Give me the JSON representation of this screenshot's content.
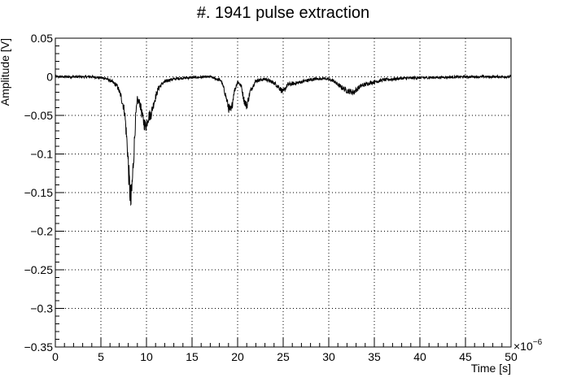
{
  "chart_data": {
    "type": "line",
    "title": "#. 1941 pulse extraction",
    "xlabel": "Time [s]",
    "ylabel": "Amplitude [V]",
    "x_multiplier_label": "×10",
    "x_multiplier_exponent": "−6",
    "xlim": [
      0,
      50
    ],
    "ylim": [
      -0.35,
      0.05
    ],
    "grid": true,
    "x_ticks": [
      0,
      5,
      10,
      15,
      20,
      25,
      30,
      35,
      40,
      45,
      50
    ],
    "x_tick_labels": [
      "0",
      "5",
      "10",
      "15",
      "20",
      "25",
      "30",
      "35",
      "40",
      "45",
      "50"
    ],
    "y_ticks": [
      0.05,
      0,
      -0.05,
      -0.1,
      -0.15,
      -0.2,
      -0.25,
      -0.3,
      -0.35
    ],
    "y_tick_labels": [
      "0.05",
      "0",
      "−0.05",
      "−0.1",
      "−0.15",
      "−0.2",
      "−0.25",
      "−0.3",
      "−0.35"
    ],
    "series": [
      {
        "color": "#000000",
        "x": [
          0,
          4,
          5.5,
          6.2,
          6.8,
          7.2,
          7.6,
          7.9,
          8.1,
          8.3,
          8.5,
          8.8,
          9.0,
          9.3,
          9.6,
          9.9,
          10.2,
          10.5,
          10.9,
          11.3,
          11.8,
          12.5,
          13.5,
          15,
          17,
          18.2,
          18.6,
          19.0,
          19.3,
          19.6,
          20.0,
          20.4,
          20.7,
          21.0,
          21.4,
          22.0,
          23.0,
          24.0,
          24.5,
          25.0,
          25.5,
          26.5,
          27.5,
          28.5,
          29.5,
          30.5,
          31.2,
          32.0,
          32.7,
          33.5,
          34.5,
          36,
          38,
          41,
          45,
          50
        ],
        "y": [
          0,
          0,
          -0.002,
          -0.006,
          -0.012,
          -0.025,
          -0.045,
          -0.09,
          -0.135,
          -0.165,
          -0.125,
          -0.055,
          -0.03,
          -0.035,
          -0.055,
          -0.065,
          -0.052,
          -0.048,
          -0.03,
          -0.015,
          -0.008,
          -0.004,
          -0.002,
          -0.001,
          0,
          -0.005,
          -0.02,
          -0.04,
          -0.045,
          -0.02,
          -0.006,
          -0.012,
          -0.03,
          -0.038,
          -0.018,
          -0.005,
          -0.003,
          -0.008,
          -0.013,
          -0.02,
          -0.01,
          -0.008,
          -0.005,
          -0.003,
          -0.002,
          -0.005,
          -0.012,
          -0.018,
          -0.02,
          -0.012,
          -0.008,
          -0.004,
          -0.002,
          -0.001,
          0,
          0
        ]
      }
    ]
  }
}
